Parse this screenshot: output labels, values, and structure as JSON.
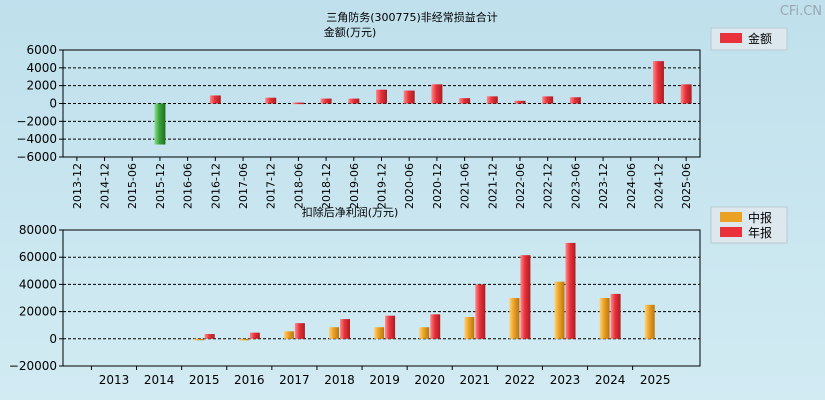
{
  "watermark": "CFi.CN",
  "colors": {
    "red": "#e8313a",
    "red_dark": "#a81e22",
    "green": "#3aa33a",
    "green_dark": "#1f6e1f",
    "orange": "#eba224",
    "orange_dark": "#b87510"
  },
  "chart_data": [
    {
      "type": "bar",
      "title": "三角防务(300775)非经常损益合计",
      "subtitle": "金额(万元)",
      "legend": [
        {
          "label": "金额",
          "color": "#e8313a"
        }
      ],
      "legend_position": "top-right",
      "ylim": [
        -6000,
        6000
      ],
      "yticks": [
        6000,
        4000,
        2000,
        0,
        -2000,
        -4000,
        -6000
      ],
      "ytick_labels": [
        "6000",
        "4000",
        "2000",
        "0",
        "−2000",
        "−4000",
        "−6000"
      ],
      "grid": true,
      "categories": [
        "2013-12",
        "2014-12",
        "2015-06",
        "2015-12",
        "2016-06",
        "2016-12",
        "2017-06",
        "2017-12",
        "2018-06",
        "2018-12",
        "2019-06",
        "2019-12",
        "2020-06",
        "2020-12",
        "2021-06",
        "2021-12",
        "2022-06",
        "2022-12",
        "2023-06",
        "2023-12",
        "2024-06",
        "2024-12",
        "2025-06"
      ],
      "values": [
        0,
        0,
        0,
        -4600,
        0,
        900,
        0,
        650,
        100,
        550,
        550,
        1550,
        1450,
        2150,
        600,
        800,
        300,
        800,
        700,
        0,
        0,
        4750,
        2150
      ]
    },
    {
      "type": "bar",
      "title": "扣除后净利润(万元)",
      "legend": [
        {
          "label": "中报",
          "color": "#eba224"
        },
        {
          "label": "年报",
          "color": "#e8313a"
        }
      ],
      "legend_position": "top-right",
      "ylim": [
        -20000,
        80000
      ],
      "yticks": [
        80000,
        60000,
        40000,
        20000,
        0,
        -20000
      ],
      "ytick_labels": [
        "80000",
        "60000",
        "40000",
        "20000",
        "0",
        "−20000"
      ],
      "grid": true,
      "categories": [
        "2013",
        "2014",
        "2015",
        "2016",
        "2017",
        "2018",
        "2019",
        "2020",
        "2021",
        "2022",
        "2023",
        "2024",
        "2025"
      ],
      "series": [
        {
          "name": "中报",
          "values": [
            null,
            null,
            -500,
            -1000,
            5500,
            8500,
            8500,
            8500,
            16000,
            30000,
            42000,
            30000,
            25000
          ]
        },
        {
          "name": "年报",
          "values": [
            null,
            null,
            3500,
            4500,
            11500,
            14500,
            17000,
            18000,
            40000,
            61500,
            70500,
            33000,
            null
          ]
        }
      ]
    }
  ]
}
